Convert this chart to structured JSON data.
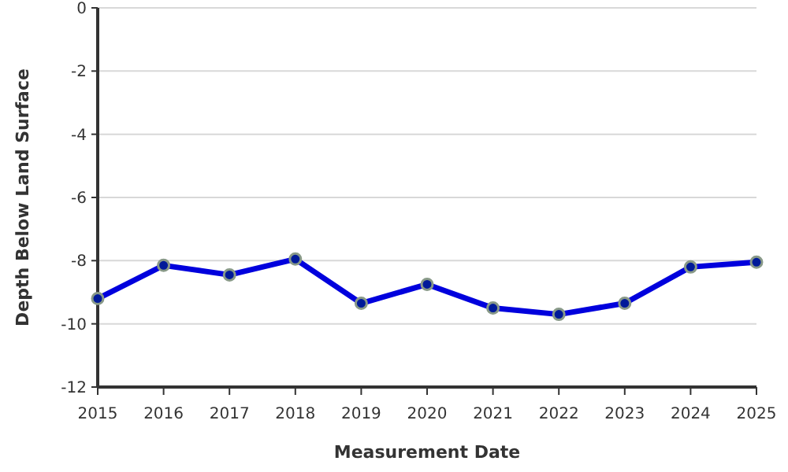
{
  "chart_data": {
    "type": "line",
    "xlabel": "Measurement Date",
    "ylabel": "Depth Below Land Surface",
    "x": [
      2015,
      2016,
      2017,
      2018,
      2019,
      2020,
      2021,
      2022,
      2023,
      2024,
      2025
    ],
    "series": [
      {
        "color": "#0000dd",
        "values": [
          -9.2,
          -8.15,
          -8.45,
          -7.95,
          -9.35,
          -8.75,
          -9.5,
          -9.7,
          -9.35,
          -8.2,
          -8.05
        ]
      }
    ],
    "xlim": [
      2015,
      2025
    ],
    "xticks": [
      2015,
      2016,
      2017,
      2018,
      2019,
      2020,
      2021,
      2022,
      2023,
      2024,
      2025
    ],
    "ylim": [
      -12,
      0
    ],
    "yticks": [
      -12,
      -10,
      -8,
      -6,
      -4,
      -2,
      0
    ],
    "grid": "y",
    "marker": "circle",
    "line_style": "solid"
  }
}
